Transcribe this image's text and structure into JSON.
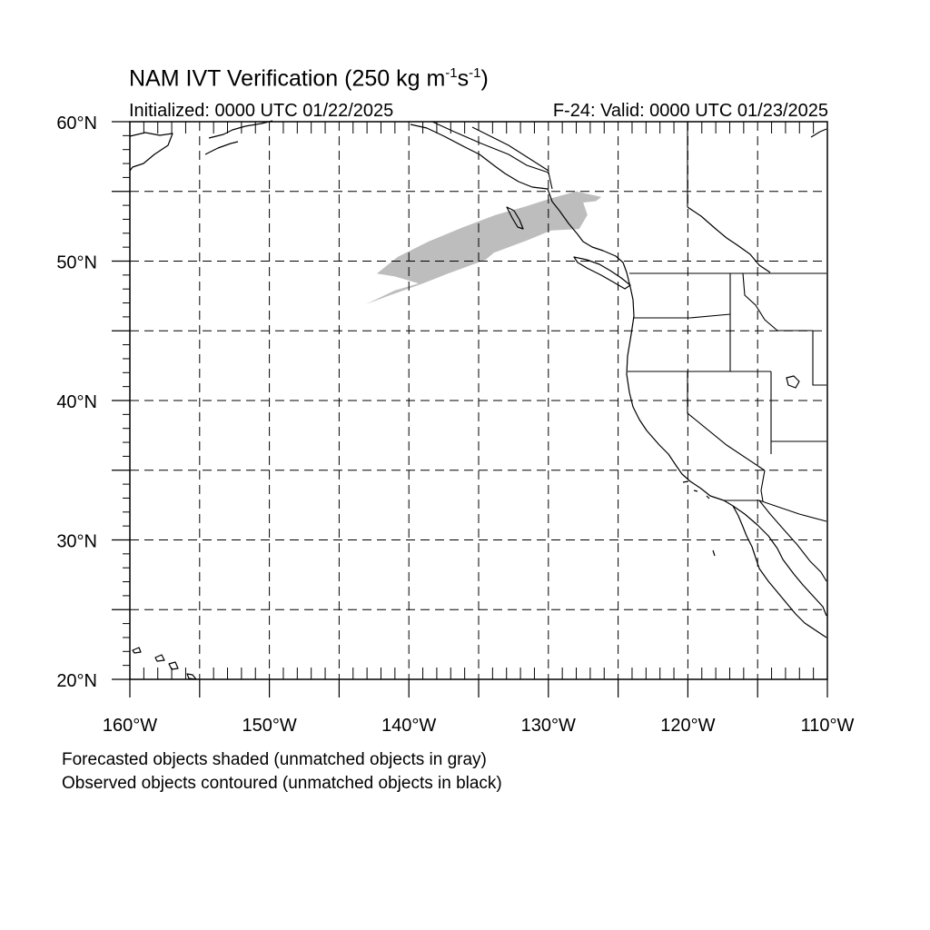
{
  "header": {
    "title_main": "NAM IVT Verification (250 kg m",
    "title_exp1": "-1",
    "title_mid": "s",
    "title_exp2": "-1",
    "title_end": ")",
    "initialized": "Initialized: 0000 UTC 01/22/2025",
    "valid": "F-24: Valid: 0000 UTC 01/23/2025"
  },
  "map": {
    "projection": "cylindrical equidistant",
    "lon_range": [
      -160,
      -110
    ],
    "lat_range": [
      20,
      60
    ],
    "grid": "dashed every 5 degrees",
    "lat_labels": [
      "60°N",
      "50°N",
      "40°N",
      "30°N",
      "20°N"
    ],
    "lon_labels": [
      "160°W",
      "150°W",
      "140°W",
      "130°W",
      "120°W",
      "110°W"
    ],
    "forecast_object": {
      "status": "unmatched",
      "fill_color": "#bdbdbd",
      "polygon_lonlat": [
        [
          -142.3,
          49.1
        ],
        [
          -140.8,
          50.3
        ],
        [
          -138.6,
          51.4
        ],
        [
          -136.2,
          52.4
        ],
        [
          -133.8,
          53.3
        ],
        [
          -131.7,
          53.9
        ],
        [
          -129.8,
          54.5
        ],
        [
          -128.0,
          55.0
        ],
        [
          -126.2,
          54.6
        ],
        [
          -126.6,
          54.3
        ],
        [
          -127.5,
          54.2
        ],
        [
          -127.2,
          53.3
        ],
        [
          -127.8,
          52.3
        ],
        [
          -129.8,
          52.2
        ],
        [
          -131.5,
          51.5
        ],
        [
          -133.9,
          50.6
        ],
        [
          -134.5,
          50.1
        ],
        [
          -137.2,
          49.1
        ],
        [
          -139.0,
          48.4
        ],
        [
          -141.5,
          47.5
        ],
        [
          -143.1,
          46.9
        ],
        [
          -141.0,
          47.9
        ],
        [
          -139.3,
          48.4
        ],
        [
          -141.0,
          48.9
        ]
      ]
    }
  },
  "captions": {
    "line1": "Forecasted objects shaded (unmatched objects in gray)",
    "line2": "Observed objects contoured (unmatched objects in black)"
  }
}
